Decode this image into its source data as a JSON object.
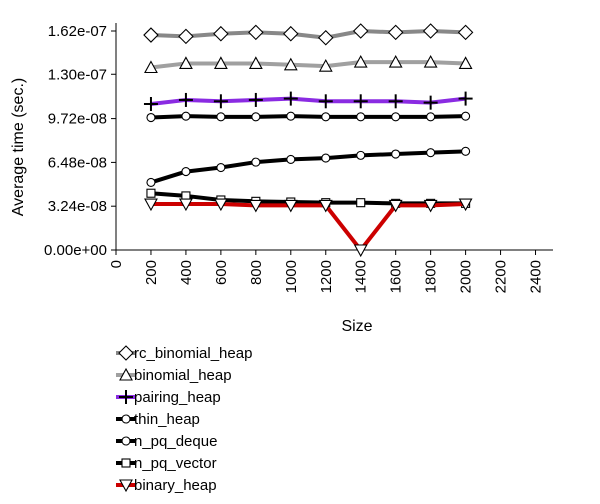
{
  "chart_data": {
    "type": "line",
    "title": "",
    "xlabel": "Size",
    "ylabel": "Average time (sec.)",
    "xlim": [
      0,
      2500
    ],
    "ylim": [
      0,
      1.62e-07
    ],
    "x_ticks": [
      0,
      200,
      400,
      600,
      800,
      1000,
      1200,
      1400,
      1600,
      1800,
      2000,
      2200,
      2400
    ],
    "x_tick_labels": [
      "0",
      "200",
      "400",
      "600",
      "800",
      "1000",
      "1200",
      "1400",
      "1600",
      "1800",
      "2000",
      "2200",
      "2400"
    ],
    "y_ticks": [
      0,
      3.24e-08,
      6.48e-08,
      9.72e-08,
      1.3e-07,
      1.62e-07
    ],
    "y_tick_labels": [
      "0.00e+00",
      "3.24e-08",
      "6.48e-08",
      "9.72e-08",
      "1.30e-07",
      "1.62e-07"
    ],
    "grid": false,
    "legend_position": "bottom-left",
    "x": [
      200,
      400,
      600,
      800,
      1000,
      1200,
      1400,
      1600,
      1800,
      2000
    ],
    "series": [
      {
        "name": "rc_binomial_heap",
        "color": "#888888",
        "marker": "diamond",
        "values": [
          1.59e-07,
          1.58e-07,
          1.6e-07,
          1.61e-07,
          1.6e-07,
          1.57e-07,
          1.62e-07,
          1.61e-07,
          1.62e-07,
          1.61e-07
        ]
      },
      {
        "name": "binomial_heap",
        "color": "#a0a0a0",
        "marker": "triangle-up",
        "values": [
          1.35e-07,
          1.38e-07,
          1.38e-07,
          1.38e-07,
          1.37e-07,
          1.36e-07,
          1.39e-07,
          1.39e-07,
          1.39e-07,
          1.38e-07
        ]
      },
      {
        "name": "pairing_heap",
        "color": "#8a2be2",
        "marker": "plus",
        "values": [
          1.08e-07,
          1.11e-07,
          1.1e-07,
          1.11e-07,
          1.12e-07,
          1.1e-07,
          1.1e-07,
          1.1e-07,
          1.09e-07,
          1.12e-07
        ]
      },
      {
        "name": "thin_heap",
        "color": "#000000",
        "marker": "circle",
        "values": [
          9.8e-08,
          9.9e-08,
          9.85e-08,
          9.85e-08,
          9.9e-08,
          9.85e-08,
          9.85e-08,
          9.85e-08,
          9.85e-08,
          9.9e-08
        ]
      },
      {
        "name": "n_pq_deque",
        "color": "#000000",
        "marker": "circle",
        "values": [
          5e-08,
          5.8e-08,
          6.1e-08,
          6.5e-08,
          6.7e-08,
          6.8e-08,
          7e-08,
          7.1e-08,
          7.2e-08,
          7.3e-08
        ]
      },
      {
        "name": "n_pq_vector",
        "color": "#000000",
        "marker": "square",
        "values": [
          4.2e-08,
          4e-08,
          3.7e-08,
          3.6e-08,
          3.55e-08,
          3.5e-08,
          3.5e-08,
          3.45e-08,
          3.45e-08,
          3.45e-08
        ]
      },
      {
        "name": "binary_heap",
        "color": "#cc0000",
        "marker": "triangle-down",
        "values": [
          3.4e-08,
          3.4e-08,
          3.4e-08,
          3.3e-08,
          3.3e-08,
          3.3e-08,
          0.0,
          3.3e-08,
          3.3e-08,
          3.4e-08
        ]
      }
    ]
  }
}
